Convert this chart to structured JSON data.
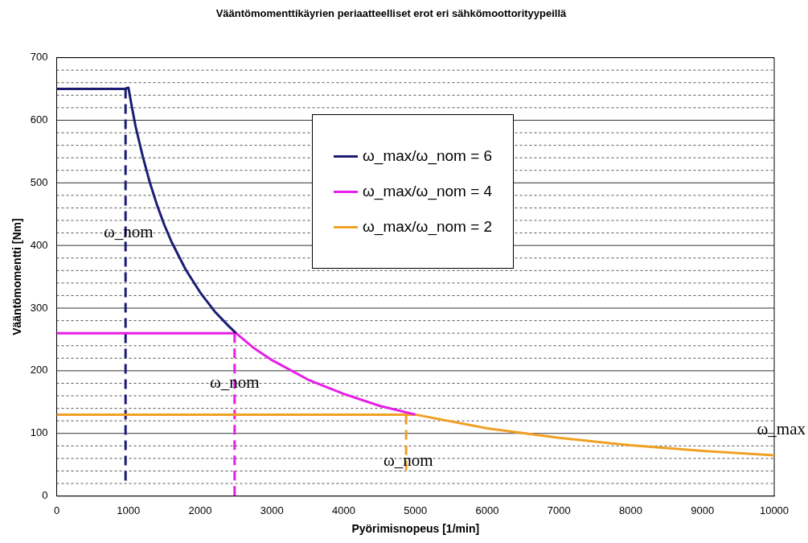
{
  "chart_data": {
    "type": "line",
    "title": "Vääntömomenttikäyrien periaatteelliset erot eri sähkömoottorityypeillä",
    "xlabel": "Pyörimisnopeus [1/min]",
    "ylabel": "Vääntömomentti [Nm]",
    "xlim": [
      0,
      10000
    ],
    "xticks": [
      0,
      1000,
      2000,
      3000,
      4000,
      5000,
      6000,
      7000,
      8000,
      9000,
      10000
    ],
    "ylim": [
      0,
      700
    ],
    "yticks": [
      0,
      {
        "value": 20,
        "label": null
      },
      {
        "value": 40,
        "label": null
      },
      {
        "value": 60,
        "label": null
      },
      {
        "value": 80,
        "label": null
      },
      100,
      {
        "value": 120,
        "label": null
      },
      {
        "value": 140,
        "label": null
      },
      {
        "value": 160,
        "label": null
      },
      {
        "value": 180,
        "label": null
      },
      200,
      {
        "value": 220,
        "label": null
      },
      {
        "value": 240,
        "label": null
      },
      {
        "value": 260,
        "label": null
      },
      {
        "value": 280,
        "label": null
      },
      300,
      {
        "value": 320,
        "label": null
      },
      {
        "value": 340,
        "label": null
      },
      {
        "value": 360,
        "label": null
      },
      {
        "value": 380,
        "label": null
      },
      400,
      {
        "value": 420,
        "label": null
      },
      {
        "value": 440,
        "label": null
      },
      {
        "value": 460,
        "label": null
      },
      {
        "value": 480,
        "label": null
      },
      500,
      {
        "value": 520,
        "label": null
      },
      {
        "value": 540,
        "label": null
      },
      {
        "value": 560,
        "label": null
      },
      {
        "value": 580,
        "label": null
      },
      600,
      {
        "value": 620,
        "label": null
      },
      {
        "value": 640,
        "label": null
      },
      {
        "value": 660,
        "label": null
      },
      {
        "value": 680,
        "label": null
      },
      700
    ],
    "grid": "y",
    "legend": "top right",
    "marker": "none",
    "line_style": "solid",
    "series": [
      {
        "name": "ω_max/ω_nom = 6",
        "color": "#1c1c74",
        "x": [
          0,
          950,
          1000,
          1050,
          1100,
          1200,
          1300,
          1400,
          1500,
          1600,
          1800,
          2000,
          2200,
          2400,
          2500
        ],
        "values": [
          650,
          650,
          652,
          620,
          590,
          542,
          500,
          464,
          433,
          406,
          361,
          325,
          295,
          271,
          260
        ]
      },
      {
        "name": "ω_max/ω_nom = 4",
        "color": "#e61ee6",
        "x": [
          0,
          2500,
          2750,
          3000,
          3500,
          4000,
          4500,
          5000
        ],
        "values": [
          260,
          260,
          236,
          217,
          186,
          163,
          144,
          130
        ]
      },
      {
        "name": "ω_max/ω_nom = 2",
        "color": "#f0a024",
        "x": [
          0,
          5000,
          6000,
          7000,
          8000,
          9000,
          10000
        ],
        "values": [
          130,
          130,
          108,
          93,
          81,
          72,
          65
        ]
      },
      {
        "color": "#1c1c74",
        "line_style": "dashed",
        "x": [
          960,
          960
        ],
        "values": [
          650,
          20
        ]
      },
      {
        "color": "#e61ee6",
        "line_style": "dashed",
        "x": [
          2480,
          2480
        ],
        "values": [
          260,
          0
        ]
      },
      {
        "color": "#f0a024",
        "line_style": "dashed",
        "x": [
          4870,
          4870
        ],
        "values": [
          130,
          40
        ]
      }
    ],
    "annotations": [
      {
        "text": "ω_nom",
        "x": 1000,
        "y": 420
      },
      {
        "text": "ω_nom",
        "x": 2480,
        "y": 180
      },
      {
        "text": "ω_nom",
        "x": 4900,
        "y": 55
      },
      "ω_max"
    ]
  }
}
